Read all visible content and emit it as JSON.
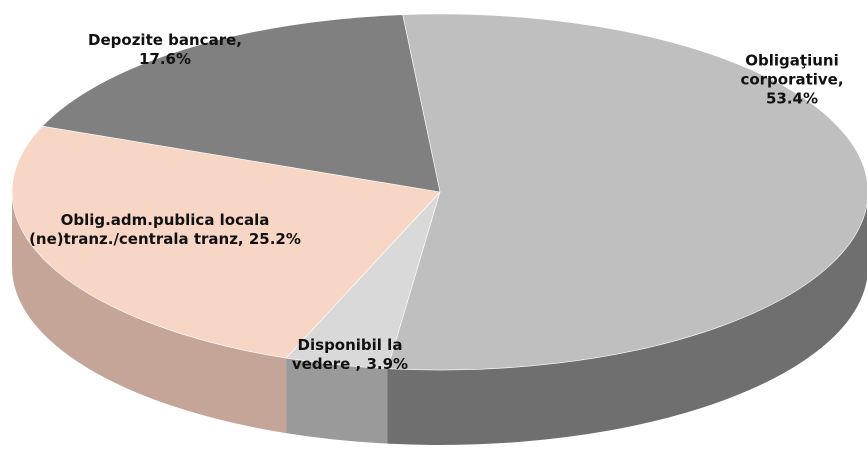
{
  "chart_data": {
    "type": "pie3d",
    "values": [
      53.4,
      3.9,
      25.2,
      17.6
    ],
    "value_labels": [
      "Obligaţiuni corporative, 53.4%",
      "Disponibil la vedere , 3.9%",
      "Oblig.adm.publica locala (ne)tranz./centrala tranz, 25.2%",
      "Depozite bancare, 17.6%"
    ],
    "colors": [
      "#bfbfbf",
      "#d9d9d9",
      "#f8d6c6",
      "#808080"
    ],
    "side_colors": [
      "#6f6f6f",
      "#9a9a9a",
      "#c4a598",
      "#5a5a5a"
    ]
  }
}
